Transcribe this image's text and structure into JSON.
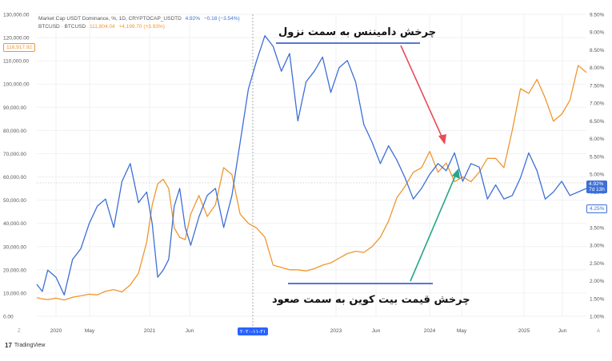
{
  "legend": {
    "usdt": {
      "name": "Market Cap USDT Dominance, %, 1D, CRYPTOCAP_USDTD",
      "value": "4.92%",
      "change": "−0.18 (−3.54%)"
    },
    "btc": {
      "name": "BTCUSD · BTCUSD",
      "value": "111,804.04",
      "change": "+4,199.70 (+3.93%)"
    }
  },
  "brand": "TradingView",
  "brand_logo": "17",
  "annotations": {
    "top": "چرخش دامیننس به سمت نزول",
    "bottom": "چرخش قیمت بیت کوین به سمت صعود"
  },
  "tags": {
    "left_price": "116,917.92",
    "right_current": "4.92%",
    "right_countdown": "7d 13h",
    "right_low": "4.25%",
    "crosshair_date": "۲۰۲۰-۱۱-۲۱"
  },
  "colors": {
    "btc": "#f0962e",
    "usdt": "#3d6fd6",
    "red_arrow": "#e84b55",
    "green_arrow": "#26a68a",
    "line_marker": "#2149c8"
  },
  "chart_data": {
    "type": "line",
    "x_ticks": [
      "2020",
      "May",
      "2021",
      "Jun",
      "2023",
      "Jun",
      "2024",
      "May",
      "2025",
      "Jun"
    ],
    "left_axis": {
      "ticks": [
        "0.00",
        "10,000.00",
        "20,000.00",
        "30,000.00",
        "40,000.00",
        "50,000.00",
        "60,000.00",
        "70,000.00",
        "80,000.00",
        "90,000.00",
        "100,000.00",
        "110,000.00",
        "120,000.00",
        "130,000.00"
      ],
      "ylim": [
        0,
        130000
      ]
    },
    "right_axis": {
      "ticks": [
        "1.00%",
        "1.50%",
        "2.00%",
        "2.50%",
        "3.00%",
        "3.50%",
        "4.00%",
        "4.50%",
        "5.00%",
        "5.50%",
        "6.00%",
        "6.50%",
        "7.00%",
        "7.50%",
        "8.00%",
        "8.50%",
        "9.00%",
        "9.50%"
      ],
      "ylim": [
        1,
        9.5
      ]
    },
    "series": [
      {
        "name": "BTCUSD",
        "axis": "left",
        "x": [
          0,
          0.01,
          0.02,
          0.035,
          0.05,
          0.065,
          0.08,
          0.095,
          0.11,
          0.125,
          0.14,
          0.155,
          0.17,
          0.185,
          0.2,
          0.21,
          0.22,
          0.23,
          0.24,
          0.25,
          0.26,
          0.27,
          0.28,
          0.295,
          0.31,
          0.325,
          0.34,
          0.355,
          0.37,
          0.385,
          0.4,
          0.415,
          0.43,
          0.445,
          0.46,
          0.475,
          0.49,
          0.505,
          0.52,
          0.535,
          0.55,
          0.565,
          0.58,
          0.595,
          0.61,
          0.625,
          0.64,
          0.655,
          0.67,
          0.685,
          0.7,
          0.715,
          0.73,
          0.745,
          0.76,
          0.775,
          0.79,
          0.805,
          0.82,
          0.835,
          0.85,
          0.865,
          0.88,
          0.895,
          0.91,
          0.925,
          0.94,
          0.955,
          0.97,
          0.985,
          1
        ],
        "y": [
          8000,
          7500,
          7200,
          7800,
          7000,
          8200,
          8800,
          9500,
          9200,
          10800,
          11500,
          10500,
          13500,
          18500,
          32000,
          48000,
          57000,
          59000,
          55000,
          38000,
          34000,
          33000,
          44000,
          52000,
          43000,
          48000,
          64000,
          61000,
          44000,
          40000,
          38000,
          34000,
          22000,
          21000,
          20000,
          20000,
          19500,
          20500,
          22000,
          23000,
          25000,
          27000,
          28000,
          27500,
          30000,
          34000,
          41000,
          51000,
          56000,
          62000,
          64000,
          71000,
          62000,
          66000,
          58000,
          60000,
          58000,
          62000,
          68000,
          68000,
          64000,
          80000,
          98000,
          96000,
          102000,
          94000,
          84000,
          87000,
          93000,
          108000,
          105000
        ],
        "values": [
          8000,
          7500,
          7200,
          7800,
          7000,
          8200,
          8800,
          9500,
          9200,
          10800,
          11500,
          10500,
          13500,
          18500,
          32000,
          48000,
          57000,
          59000,
          55000,
          38000,
          34000,
          33000,
          44000,
          52000,
          43000,
          48000,
          64000,
          61000,
          44000,
          40000,
          38000,
          34000,
          22000,
          21000,
          20000,
          20000,
          19500,
          20500,
          22000,
          23000,
          25000,
          27000,
          28000,
          27500,
          30000,
          34000,
          41000,
          51000,
          56000,
          62000,
          64000,
          71000,
          62000,
          66000,
          58000,
          60000,
          58000,
          62000,
          68000,
          68000,
          64000,
          80000,
          98000,
          96000,
          102000,
          94000,
          84000,
          87000,
          93000,
          108000,
          105000
        ]
      },
      {
        "name": "Market Cap USDT Dominance",
        "axis": "right",
        "x": [
          0,
          0.01,
          0.02,
          0.035,
          0.05,
          0.065,
          0.08,
          0.095,
          0.11,
          0.125,
          0.14,
          0.155,
          0.17,
          0.185,
          0.2,
          0.21,
          0.22,
          0.23,
          0.24,
          0.25,
          0.26,
          0.27,
          0.28,
          0.295,
          0.31,
          0.325,
          0.34,
          0.355,
          0.37,
          0.385,
          0.4,
          0.415,
          0.43,
          0.445,
          0.46,
          0.475,
          0.49,
          0.505,
          0.52,
          0.535,
          0.55,
          0.565,
          0.58,
          0.595,
          0.61,
          0.625,
          0.64,
          0.655,
          0.67,
          0.685,
          0.7,
          0.715,
          0.73,
          0.745,
          0.76,
          0.775,
          0.79,
          0.805,
          0.82,
          0.835,
          0.85,
          0.865,
          0.88,
          0.895,
          0.91,
          0.925,
          0.94,
          0.955,
          0.97,
          0.985,
          1
        ],
        "y": [
          1.9,
          1.7,
          2.3,
          2.1,
          1.6,
          2.6,
          2.9,
          3.6,
          4.1,
          4.3,
          3.5,
          4.8,
          5.3,
          4.2,
          4.5,
          3.6,
          2.1,
          2.3,
          2.6,
          4.1,
          4.6,
          3.5,
          3.0,
          3.8,
          4.4,
          4.6,
          3.5,
          4.4,
          5.9,
          7.4,
          8.2,
          8.9,
          8.6,
          7.9,
          8.4,
          6.5,
          7.6,
          7.9,
          8.3,
          7.3,
          8.0,
          8.2,
          7.6,
          6.4,
          5.9,
          5.3,
          5.8,
          5.4,
          4.9,
          4.3,
          4.6,
          5.0,
          5.3,
          5.1,
          5.6,
          4.8,
          5.3,
          5.2,
          4.3,
          4.7,
          4.3,
          4.4,
          4.9,
          5.6,
          5.1,
          4.3,
          4.5,
          4.8,
          4.4,
          4.5,
          4.6
        ],
        "values": [
          1.9,
          1.7,
          2.3,
          2.1,
          1.6,
          2.6,
          2.9,
          3.6,
          4.1,
          4.3,
          3.5,
          4.8,
          5.3,
          4.2,
          4.5,
          3.6,
          2.1,
          2.3,
          2.6,
          4.1,
          4.6,
          3.5,
          3.0,
          3.8,
          4.4,
          4.6,
          3.5,
          4.4,
          5.9,
          7.4,
          8.2,
          8.9,
          8.6,
          7.9,
          8.4,
          6.5,
          7.6,
          7.9,
          8.3,
          7.3,
          8.0,
          8.2,
          7.6,
          6.4,
          5.9,
          5.3,
          5.8,
          5.4,
          4.9,
          4.3,
          4.6,
          5.0,
          5.3,
          5.1,
          5.6,
          4.8,
          5.3,
          5.2,
          4.3,
          4.7,
          4.3,
          4.4,
          4.9,
          5.6,
          5.1,
          4.3,
          4.5,
          4.8,
          4.4,
          4.5,
          4.6
        ]
      }
    ],
    "grid": true,
    "legend_position": "top-left"
  }
}
